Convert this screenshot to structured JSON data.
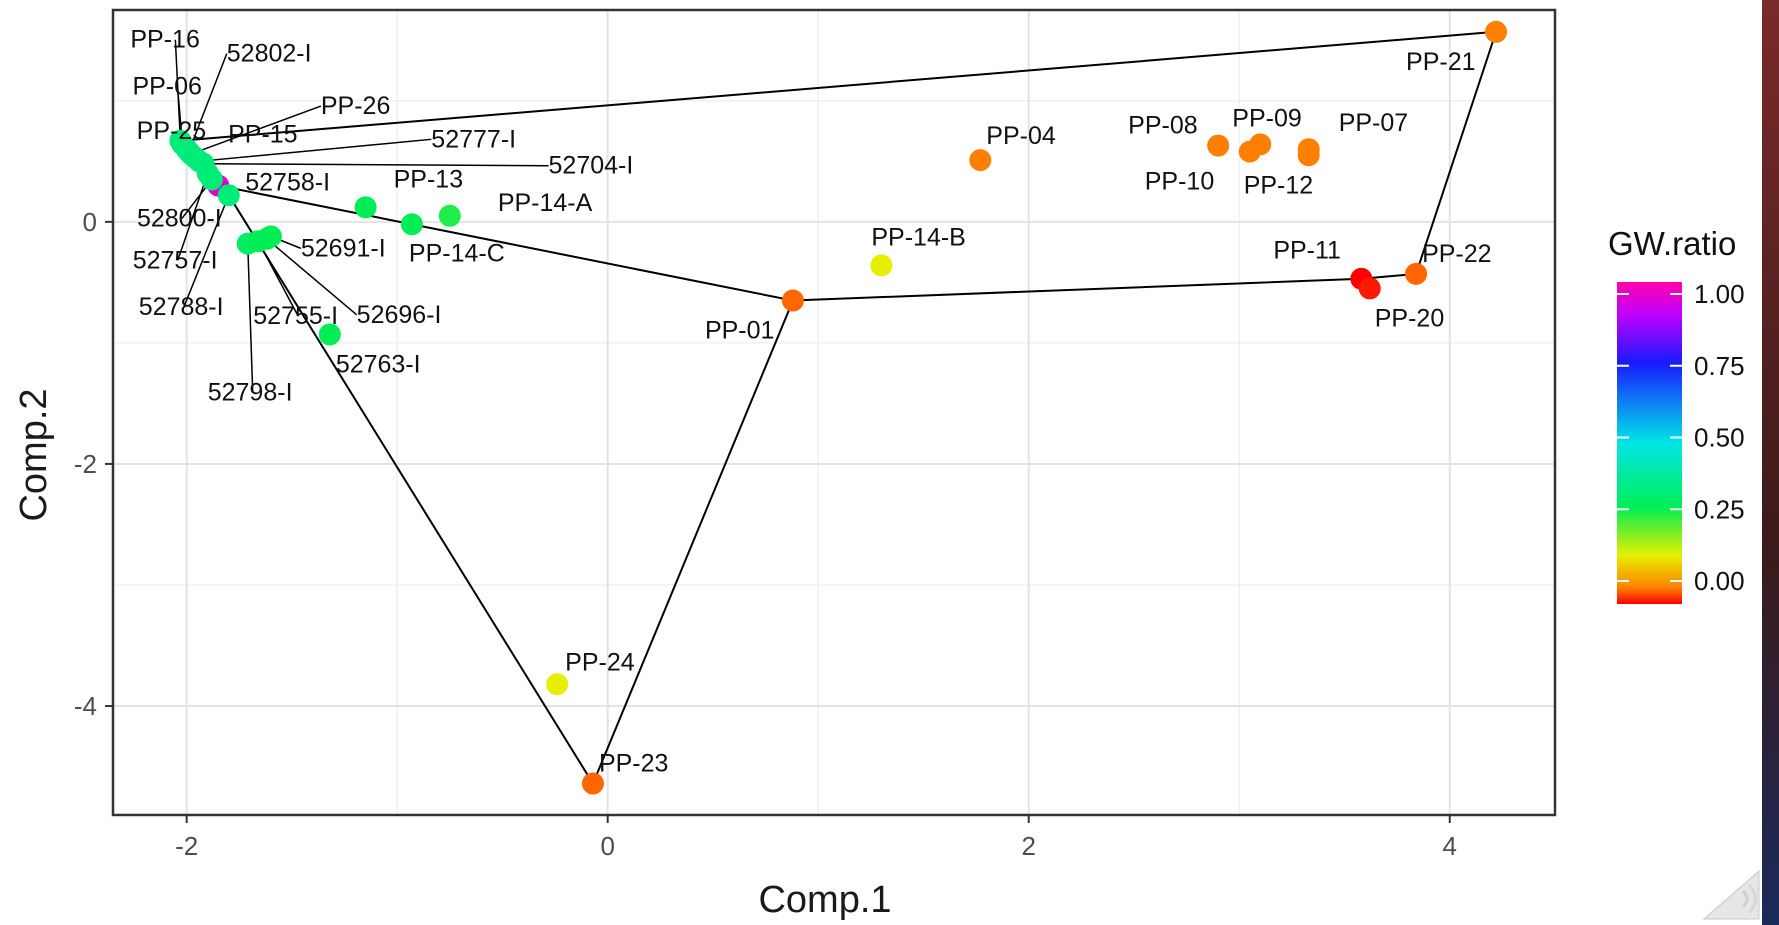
{
  "chart_data": {
    "type": "scatter",
    "xlabel": "Comp.1",
    "ylabel": "Comp.2",
    "xlim": [
      -2.35,
      4.5
    ],
    "ylim": [
      -4.9,
      1.75
    ],
    "x_ticks": [
      -2,
      0,
      2,
      4
    ],
    "y_ticks": [
      -4,
      -2,
      0
    ],
    "grid": true,
    "legend": {
      "title": "GW.ratio",
      "position": "right",
      "ticks": [
        "1.00",
        "0.75",
        "0.50",
        "0.25",
        "0.00"
      ],
      "tick_values": [
        1.0,
        0.75,
        0.5,
        0.25,
        0.0
      ]
    },
    "points": [
      {
        "label": "PP-21",
        "x": 4.22,
        "y": 1.57,
        "gw": 0.05
      },
      {
        "label": "PP-08",
        "x": 2.9,
        "y": 0.63,
        "gw": 0.05
      },
      {
        "label": "PP-09",
        "x": 3.1,
        "y": 0.64,
        "gw": 0.05
      },
      {
        "label": "PP-10",
        "x": 3.05,
        "y": 0.58,
        "gw": 0.05
      },
      {
        "label": "PP-07",
        "x": 3.33,
        "y": 0.6,
        "gw": 0.05
      },
      {
        "label": "PP-12",
        "x": 3.33,
        "y": 0.55,
        "gw": 0.05
      },
      {
        "label": "PP-04",
        "x": 1.77,
        "y": 0.51,
        "gw": 0.05
      },
      {
        "label": "PP-14-B",
        "x": 1.3,
        "y": -0.36,
        "gw": 0.15
      },
      {
        "label": "PP-01",
        "x": 0.88,
        "y": -0.65,
        "gw": 0.04
      },
      {
        "label": "PP-11",
        "x": 3.58,
        "y": -0.47,
        "gw": 0.0
      },
      {
        "label": "PP-20",
        "x": 3.62,
        "y": -0.55,
        "gw": 0.01
      },
      {
        "label": "PP-22",
        "x": 3.84,
        "y": -0.43,
        "gw": 0.04
      },
      {
        "label": "PP-24",
        "x": -0.24,
        "y": -3.82,
        "gw": 0.15
      },
      {
        "label": "PP-23",
        "x": -0.07,
        "y": -4.64,
        "gw": 0.04
      },
      {
        "label": "PP-13",
        "x": -1.15,
        "y": 0.12,
        "gw": 0.3
      },
      {
        "label": "PP-14-A",
        "x": -0.75,
        "y": 0.05,
        "gw": 0.28
      },
      {
        "label": "PP-14-C",
        "x": -0.93,
        "y": -0.02,
        "gw": 0.3
      },
      {
        "label": "52763-I",
        "x": -1.32,
        "y": -0.93,
        "gw": 0.3
      },
      {
        "label": "52798-I",
        "x": -1.71,
        "y": -0.18,
        "gw": 0.32
      },
      {
        "label": "52691-I",
        "x": -1.6,
        "y": -0.12,
        "gw": 0.3
      },
      {
        "label": "52696-I",
        "x": -1.62,
        "y": -0.14,
        "gw": 0.3
      },
      {
        "label": "52755-I",
        "x": -1.66,
        "y": -0.16,
        "gw": 0.3
      },
      {
        "label": "PP-16",
        "x": -2.03,
        "y": 0.67,
        "gw": 0.35
      },
      {
        "label": "PP-06",
        "x": -2.02,
        "y": 0.64,
        "gw": 0.35
      },
      {
        "label": "PP-25",
        "x": -2.0,
        "y": 0.6,
        "gw": 0.35
      },
      {
        "label": "52802-I",
        "x": -1.99,
        "y": 0.58,
        "gw": 0.35
      },
      {
        "label": "PP-26",
        "x": -1.98,
        "y": 0.56,
        "gw": 0.35
      },
      {
        "label": "PP-15",
        "x": -1.96,
        "y": 0.53,
        "gw": 0.35
      },
      {
        "label": "52777-I",
        "x": -1.94,
        "y": 0.5,
        "gw": 0.35
      },
      {
        "label": "52704-I",
        "x": -1.92,
        "y": 0.48,
        "gw": 0.35
      },
      {
        "label": "52758-I",
        "x": -1.85,
        "y": 0.3,
        "gw": 0.95
      },
      {
        "label": "52800-I",
        "x": -1.88,
        "y": 0.35,
        "gw": 0.35
      },
      {
        "label": "52757-I",
        "x": -1.9,
        "y": 0.4,
        "gw": 0.35
      },
      {
        "label": "52788-I",
        "x": -1.8,
        "y": 0.22,
        "gw": 0.35
      }
    ],
    "hull": [
      "PP-16",
      "PP-21",
      "PP-22",
      "PP-11",
      "PP-01",
      "PP-23",
      "52788-I",
      "PP-16"
    ],
    "hull_extra": [
      [
        "52758-I",
        "PP-01"
      ]
    ]
  }
}
